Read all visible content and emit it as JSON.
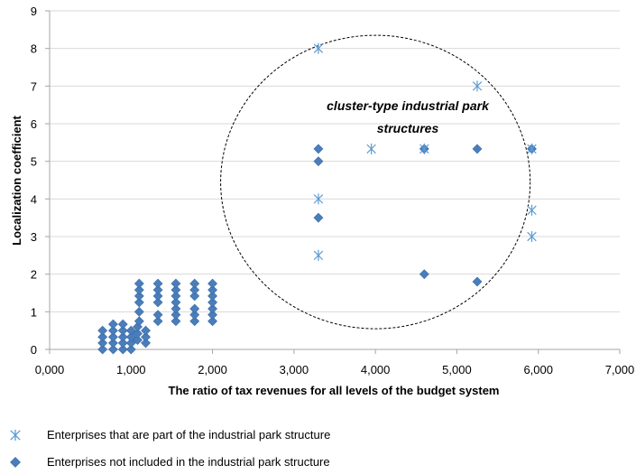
{
  "chart_data": {
    "type": "scatter",
    "title": "",
    "xlabel": "The ratio of tax revenues for all levels of the budget system",
    "ylabel": "Localization coefficient",
    "xlim": [
      0,
      7
    ],
    "ylim": [
      0,
      9
    ],
    "x_ticks": [
      "0,000",
      "1,000",
      "2,000",
      "3,000",
      "4,000",
      "5,000",
      "6,000",
      "7,000"
    ],
    "y_ticks": [
      "0",
      "1",
      "2",
      "3",
      "4",
      "5",
      "6",
      "7",
      "8",
      "9"
    ],
    "grid": "horizontal",
    "legend_position": "bottom",
    "annotation": {
      "line1": "cluster-type industrial park",
      "line2": "structures",
      "ellipse": {
        "center": [
          4.0,
          4.45
        ],
        "rx": 1.9,
        "ry": 3.9
      }
    },
    "series": [
      {
        "name": "Enterprises that are part of the industrial park structure",
        "marker": "asterisk",
        "color": "#5B9BD5",
        "points": [
          [
            3.3,
            8.0
          ],
          [
            5.25,
            7.0
          ],
          [
            3.95,
            5.33
          ],
          [
            4.6,
            5.33
          ],
          [
            5.92,
            5.33
          ],
          [
            3.3,
            4.0
          ],
          [
            5.92,
            3.7
          ],
          [
            5.92,
            3.0
          ],
          [
            3.3,
            2.5
          ]
        ]
      },
      {
        "name": "Enterprises not included in the industrial park structure",
        "marker": "diamond",
        "color": "#4A7EBB",
        "points": [
          [
            0.65,
            0.0
          ],
          [
            0.65,
            0.17
          ],
          [
            0.65,
            0.33
          ],
          [
            0.65,
            0.5
          ],
          [
            0.78,
            0.0
          ],
          [
            0.78,
            0.17
          ],
          [
            0.78,
            0.33
          ],
          [
            0.78,
            0.5
          ],
          [
            0.78,
            0.67
          ],
          [
            0.9,
            0.0
          ],
          [
            0.9,
            0.17
          ],
          [
            0.9,
            0.33
          ],
          [
            0.9,
            0.5
          ],
          [
            0.9,
            0.67
          ],
          [
            1.0,
            0.0
          ],
          [
            1.0,
            0.17
          ],
          [
            1.0,
            0.33
          ],
          [
            1.0,
            0.5
          ],
          [
            1.08,
            0.25
          ],
          [
            1.08,
            0.42
          ],
          [
            1.08,
            0.6
          ],
          [
            1.1,
            0.75
          ],
          [
            1.1,
            1.0
          ],
          [
            1.1,
            1.25
          ],
          [
            1.1,
            1.42
          ],
          [
            1.1,
            1.58
          ],
          [
            1.1,
            1.75
          ],
          [
            1.18,
            0.17
          ],
          [
            1.18,
            0.33
          ],
          [
            1.18,
            0.5
          ],
          [
            1.33,
            0.75
          ],
          [
            1.33,
            0.92
          ],
          [
            1.33,
            1.25
          ],
          [
            1.33,
            1.42
          ],
          [
            1.33,
            1.58
          ],
          [
            1.33,
            1.75
          ],
          [
            1.55,
            0.75
          ],
          [
            1.55,
            0.92
          ],
          [
            1.55,
            1.08
          ],
          [
            1.55,
            1.25
          ],
          [
            1.55,
            1.42
          ],
          [
            1.55,
            1.58
          ],
          [
            1.55,
            1.75
          ],
          [
            1.78,
            0.75
          ],
          [
            1.78,
            0.92
          ],
          [
            1.78,
            1.08
          ],
          [
            1.78,
            1.42
          ],
          [
            1.78,
            1.58
          ],
          [
            1.78,
            1.75
          ],
          [
            2.0,
            0.75
          ],
          [
            2.0,
            0.92
          ],
          [
            2.0,
            1.08
          ],
          [
            2.0,
            1.25
          ],
          [
            2.0,
            1.42
          ],
          [
            2.0,
            1.58
          ],
          [
            2.0,
            1.75
          ],
          [
            3.3,
            5.33
          ],
          [
            3.3,
            5.0
          ],
          [
            3.3,
            3.5
          ],
          [
            4.6,
            5.33
          ],
          [
            5.25,
            5.33
          ],
          [
            5.92,
            5.33
          ],
          [
            4.6,
            2.0
          ],
          [
            5.25,
            1.8
          ]
        ]
      }
    ]
  }
}
